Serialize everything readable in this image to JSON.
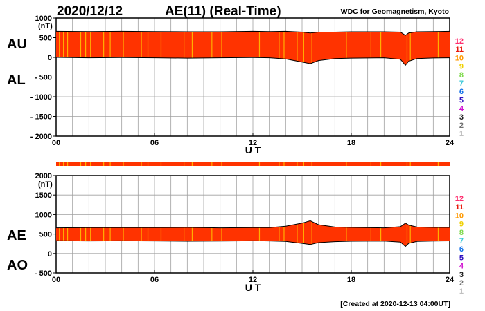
{
  "header": {
    "date": "2020/12/12",
    "title": "AE(11) (Real-Time)",
    "source": "WDC for Geomagnetism, Kyoto"
  },
  "footer": {
    "created": "[Created at 2020-12-13 04:00UT]"
  },
  "legend": {
    "items": [
      {
        "label": "12",
        "color": "#ff2d6e"
      },
      {
        "label": "11",
        "color": "#e8180a"
      },
      {
        "label": "10",
        "color": "#ff9900"
      },
      {
        "label": "9",
        "color": "#f0d000"
      },
      {
        "label": "8",
        "color": "#7dd94a"
      },
      {
        "label": "7",
        "color": "#38c8d8"
      },
      {
        "label": "6",
        "color": "#1070e8"
      },
      {
        "label": "5",
        "color": "#3010c0"
      },
      {
        "label": "4",
        "color": "#d010d0"
      },
      {
        "label": "3",
        "color": "#202020"
      },
      {
        "label": "2",
        "color": "#707070"
      },
      {
        "label": "1",
        "color": "#c0c0c0"
      }
    ]
  },
  "colors": {
    "fill": "#ff3300",
    "highlight": "#ffb000",
    "outline": "#000000",
    "grid": "#a0a0a0"
  },
  "chart_data": [
    {
      "type": "area",
      "panel": "AU/AL",
      "labels_upper": "AU",
      "labels_lower": "AL",
      "unit": "(nT)",
      "xlabel": "U T",
      "xlim": [
        0,
        24
      ],
      "x_ticks": [
        0,
        6,
        12,
        18,
        24
      ],
      "x_tick_labels": [
        "00",
        "06",
        "12",
        "18",
        "24"
      ],
      "ylim": [
        -2000,
        1000
      ],
      "y_ticks": [
        1000,
        500,
        0,
        -500,
        -1000,
        -1500,
        -2000
      ],
      "y_tick_labels": [
        "1000",
        "500",
        "0",
        "- 500",
        "- 1000",
        "- 1500",
        "- 2000"
      ],
      "grid": true,
      "x": [
        0,
        2,
        4,
        6,
        8,
        10,
        12,
        13,
        14,
        15,
        15.5,
        16,
        17,
        18,
        20,
        21,
        21.3,
        21.5,
        22,
        23,
        24
      ],
      "series": [
        {
          "name": "AU",
          "values": [
            660,
            655,
            660,
            655,
            650,
            650,
            660,
            655,
            660,
            640,
            620,
            640,
            640,
            650,
            650,
            640,
            560,
            620,
            650,
            655,
            660
          ]
        },
        {
          "name": "AL",
          "values": [
            0,
            -10,
            -5,
            -10,
            -20,
            -10,
            -5,
            -10,
            -40,
            -120,
            -160,
            -80,
            -30,
            -20,
            -10,
            -50,
            -200,
            -100,
            -30,
            -15,
            -10
          ]
        }
      ]
    },
    {
      "type": "area",
      "panel": "AE/AO",
      "labels_upper": "AE",
      "labels_lower": "AO",
      "unit": "(nT)",
      "xlabel": "U T",
      "xlim": [
        0,
        24
      ],
      "x_ticks": [
        0,
        6,
        12,
        18,
        24
      ],
      "x_tick_labels": [
        "00",
        "06",
        "12",
        "18",
        "24"
      ],
      "ylim": [
        -500,
        2000
      ],
      "y_ticks": [
        2000,
        1500,
        1000,
        500,
        0,
        -500
      ],
      "y_tick_labels": [
        "2000",
        "1500",
        "1000",
        "500",
        "0",
        "- 500"
      ],
      "grid": true,
      "x": [
        0,
        2,
        4,
        6,
        8,
        10,
        12,
        13,
        14,
        15,
        15.5,
        16,
        17,
        18,
        20,
        21,
        21.3,
        21.5,
        22,
        23,
        24
      ],
      "series": [
        {
          "name": "AE",
          "values": [
            660,
            665,
            665,
            665,
            670,
            660,
            665,
            665,
            700,
            780,
            840,
            740,
            680,
            670,
            660,
            690,
            780,
            730,
            680,
            670,
            670
          ]
        },
        {
          "name": "AO",
          "values": [
            330,
            322,
            327,
            322,
            315,
            320,
            327,
            322,
            310,
            260,
            230,
            280,
            305,
            315,
            320,
            295,
            180,
            260,
            310,
            320,
            325
          ]
        }
      ]
    }
  ]
}
